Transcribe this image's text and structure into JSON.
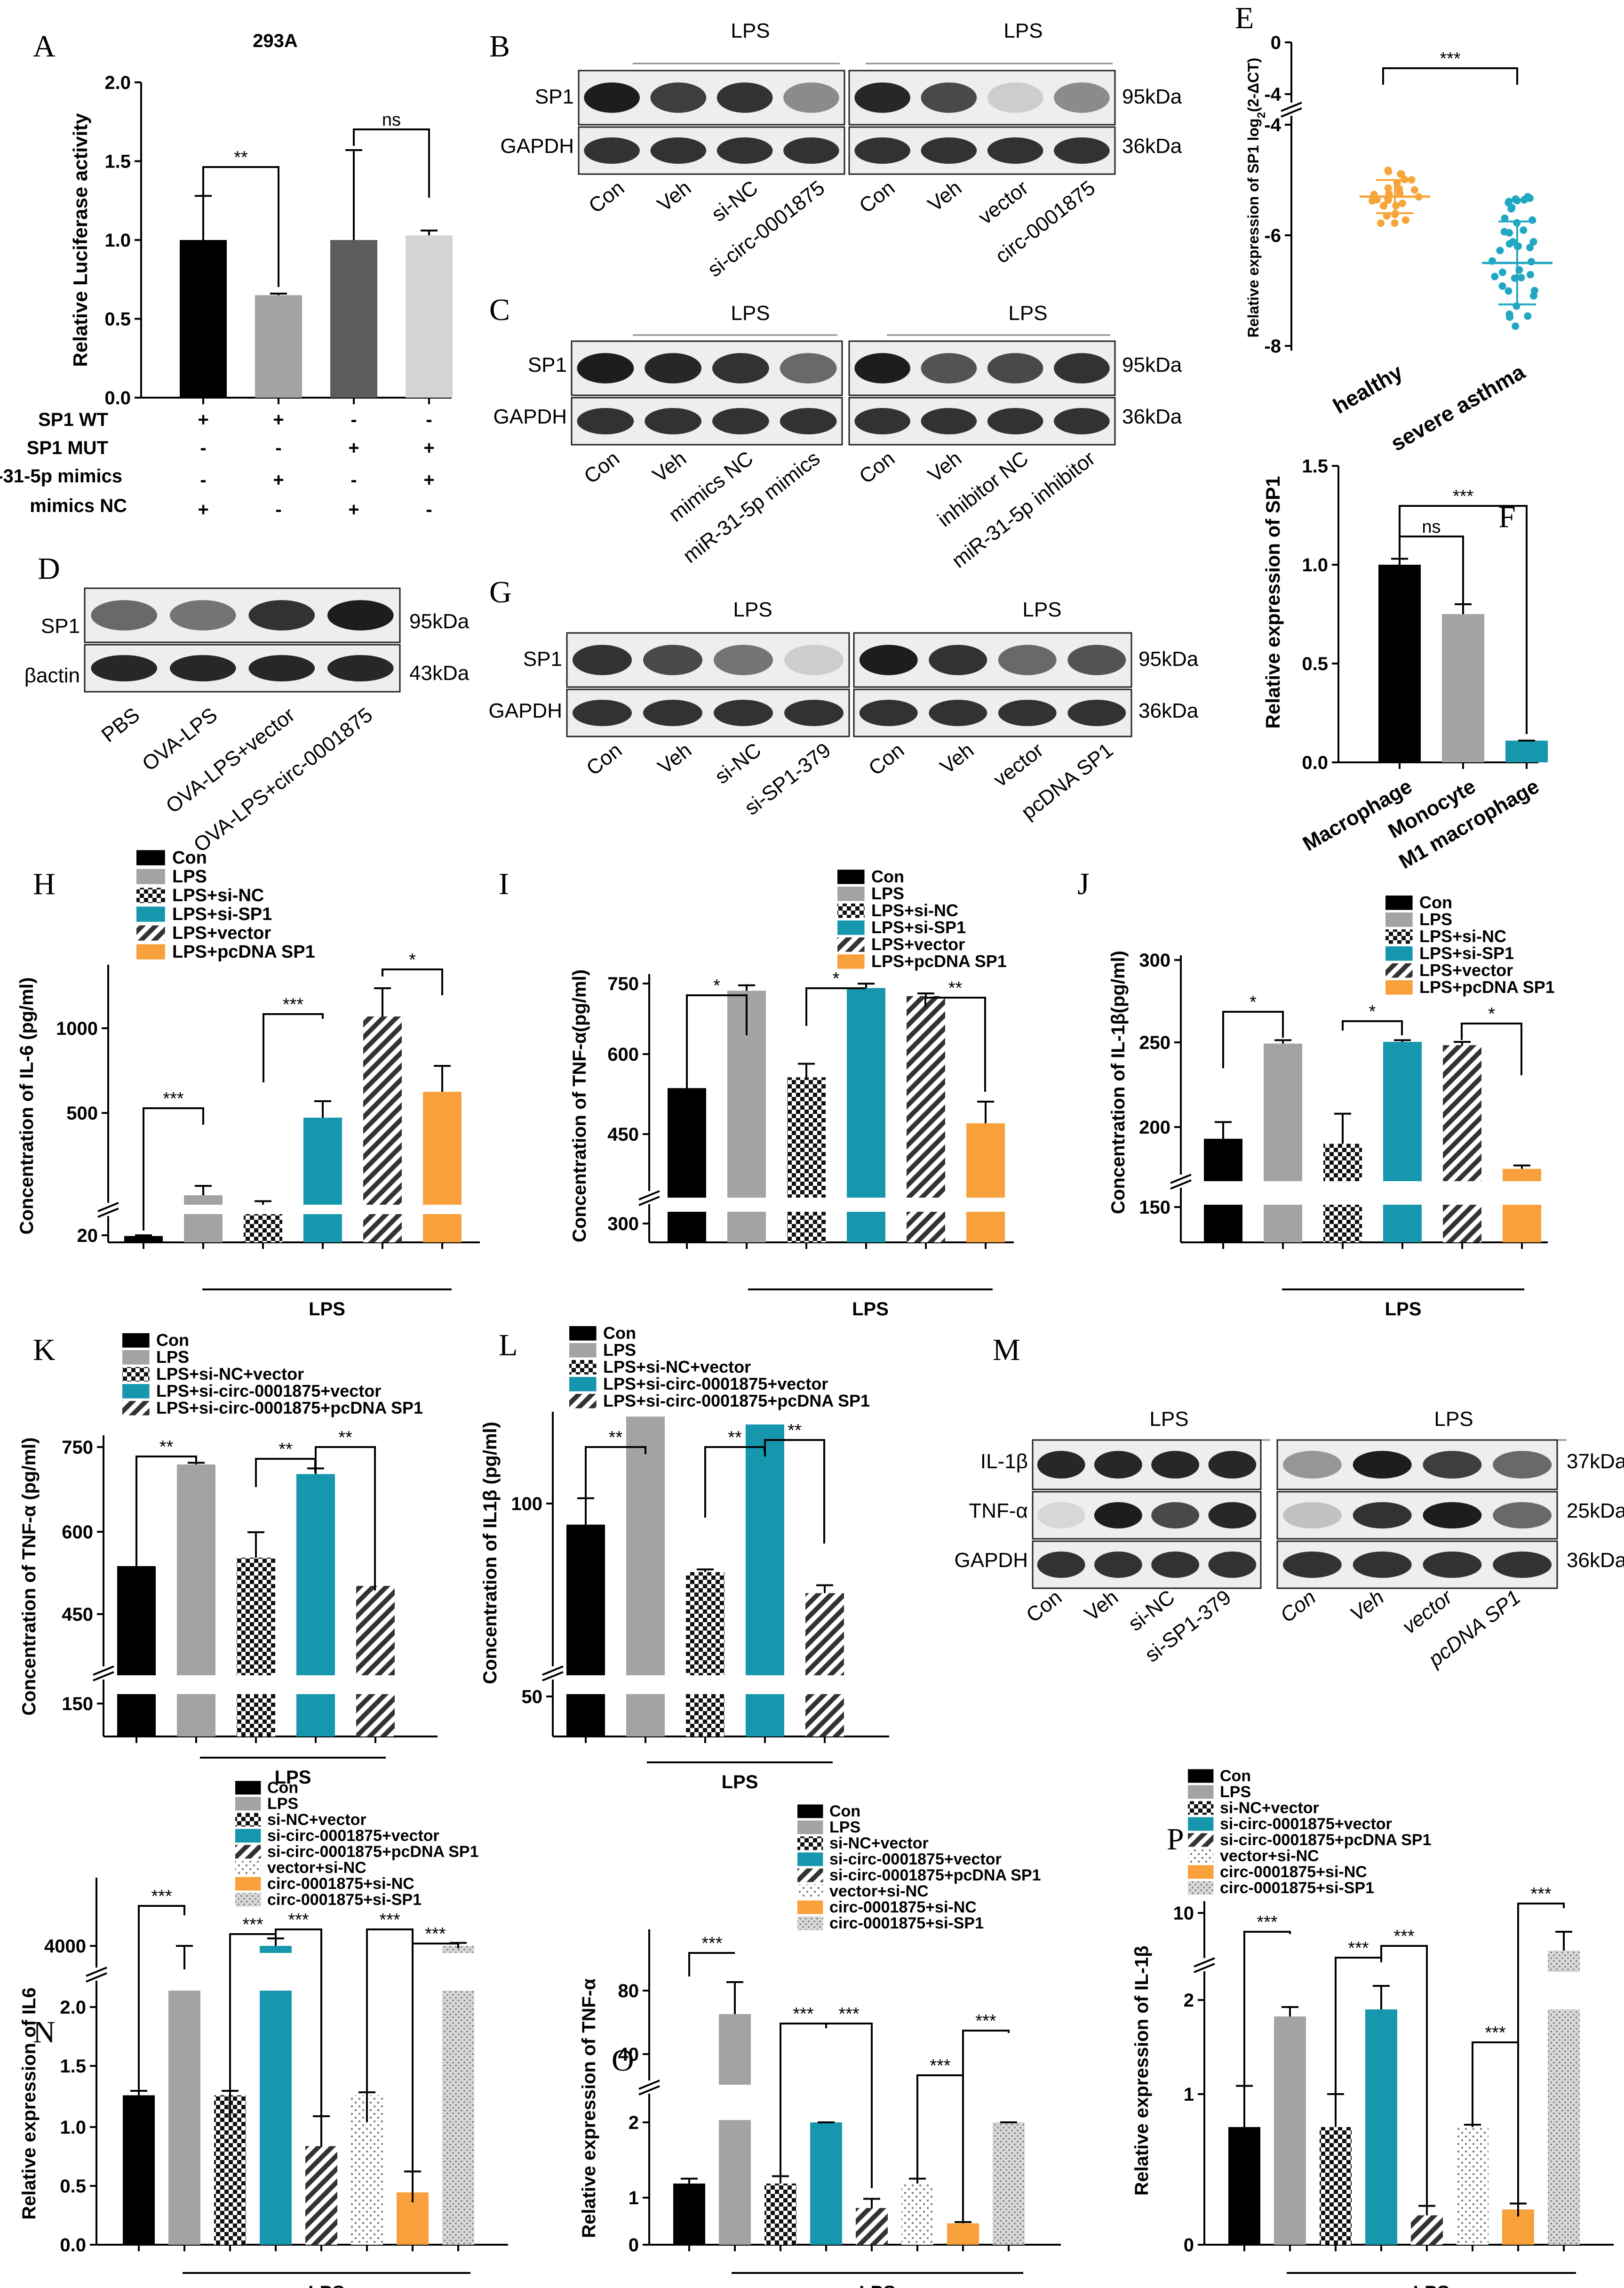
{
  "colors": {
    "black": "#000000",
    "gray": "#a3a3a5",
    "dark": "#5c5c5e",
    "light": "#d4d4d4",
    "teal": "#1797ad",
    "orange": "#f8a13c",
    "healthy": "#f6a53a",
    "asthma": "#21a7c2"
  },
  "panels": {
    "A": {
      "letter": "A",
      "title": "293A",
      "ylabel": "Relative Luciferase activity",
      "rows": [
        "SP1 WT",
        "SP1 MUT",
        "miR-31-5p mimics",
        "mimics NC"
      ],
      "row_values": [
        [
          "+",
          "+",
          "-",
          "-"
        ],
        [
          "-",
          "-",
          "+",
          "+"
        ],
        [
          "-",
          "+",
          "-",
          "+"
        ],
        [
          "+",
          "-",
          "+",
          "-"
        ]
      ],
      "sig": [
        "**",
        "ns"
      ]
    },
    "B": {
      "letter": "B",
      "top_labels": [
        "LPS",
        "LPS"
      ],
      "bands": [
        "SP1",
        "GAPDH"
      ],
      "kda": [
        "95kDa",
        "36kDa"
      ],
      "lanes": [
        "Con",
        "Veh",
        "si-NC",
        "si-circ-0001875",
        "Con",
        "Veh",
        "vector",
        "circ-0001875"
      ]
    },
    "C": {
      "letter": "C",
      "top_labels": [
        "LPS",
        "LPS"
      ],
      "bands": [
        "SP1",
        "GAPDH"
      ],
      "kda": [
        "95kDa",
        "36kDa"
      ],
      "lanes": [
        "Con",
        "Veh",
        "mimics NC",
        "miR-31-5p mimics",
        "Con",
        "Veh",
        "inhibitor NC",
        "miR-31-5p inhibitor"
      ]
    },
    "D": {
      "letter": "D",
      "bands": [
        "SP1",
        "βactin"
      ],
      "kda": [
        "95kDa",
        "43kDa"
      ],
      "lanes": [
        "PBS",
        "OVA-LPS",
        "OVA-LPS+vector",
        "OVA-LPS+circ-0001875"
      ]
    },
    "E": {
      "letter": "E",
      "ylabel_main": "Relative expression of SP1 log",
      "ylabel_sub": "2",
      "ylabel_tail": "(2-ΔCT)",
      "groups": [
        "healthy",
        "severe asthma"
      ],
      "sig": "***"
    },
    "F": {
      "letter": "F",
      "ylabel": "Relative expression of SP1",
      "sig": [
        "ns",
        "***"
      ]
    },
    "G": {
      "letter": "G",
      "top_labels": [
        "LPS",
        "LPS"
      ],
      "bands": [
        "SP1",
        "GAPDH"
      ],
      "kda": [
        "95kDa",
        "36kDa"
      ],
      "lanes": [
        "Con",
        "Veh",
        "si-NC",
        "si-SP1-379",
        "Con",
        "Veh",
        "vector",
        "pcDNA SP1"
      ]
    },
    "H": {
      "letter": "H",
      "ylabel": "Concentration of IL-6 (pg/ml)",
      "group_label": "LPS",
      "legend": [
        "Con",
        "LPS",
        "LPS+si-NC",
        "LPS+si-SP1",
        "LPS+vector",
        "LPS+pcDNA SP1"
      ],
      "sig": [
        "***",
        "***",
        "*"
      ]
    },
    "I": {
      "letter": "I",
      "ylabel": "Concentration of TNF-α(pg/ml)",
      "group_label": "LPS",
      "legend": [
        "Con",
        "LPS",
        "LPS+si-NC",
        "LPS+si-SP1",
        "LPS+vector",
        "LPS+pcDNA SP1"
      ],
      "sig": [
        "*",
        "*",
        "**"
      ]
    },
    "J": {
      "letter": "J",
      "ylabel": "Concentration of IL-1β(pg/ml)",
      "group_label": "LPS",
      "legend": [
        "Con",
        "LPS",
        "LPS+si-NC",
        "LPS+si-SP1",
        "LPS+vector",
        "LPS+pcDNA SP1"
      ],
      "sig": [
        "*",
        "*",
        "*"
      ]
    },
    "K": {
      "letter": "K",
      "ylabel": "Concentration of TNF-α (pg/ml)",
      "group_label": "LPS",
      "legend": [
        "Con",
        "LPS",
        "LPS+si-NC+vector",
        "LPS+si-circ-0001875+vector",
        "LPS+si-circ-0001875+pcDNA SP1"
      ],
      "sig": [
        "**",
        "**",
        "**"
      ]
    },
    "L": {
      "letter": "L",
      "ylabel": "Concentration of IL1β (pg/ml)",
      "group_label": "LPS",
      "legend": [
        "Con",
        "LPS",
        "LPS+si-NC+vector",
        "LPS+si-circ-0001875+vector",
        "LPS+si-circ-0001875+pcDNA SP1"
      ],
      "sig": [
        "**",
        "**",
        "**"
      ]
    },
    "M": {
      "letter": "M",
      "top_labels": [
        "LPS",
        "LPS"
      ],
      "bands": [
        "IL-1β",
        "TNF-α",
        "GAPDH"
      ],
      "kda": [
        "37kDa",
        "25kDa",
        "36kDa"
      ],
      "lanes": [
        "Con",
        "Veh",
        "si-NC",
        "si-SP1-379",
        "Con",
        "Veh",
        "vector",
        "pcDNA SP1"
      ]
    },
    "N": {
      "letter": "N",
      "ylabel": "Relative expression of IL6",
      "group_label": "LPS",
      "legend": [
        "Con",
        "LPS",
        "si-NC+vector",
        "si-circ-0001875+vector",
        "si-circ-0001875+pcDNA SP1",
        "vector+si-NC",
        "circ-0001875+si-NC",
        "circ-0001875+si-SP1"
      ],
      "sig": [
        "***",
        "***",
        "***",
        "***",
        "***"
      ]
    },
    "O": {
      "letter": "O",
      "ylabel": "Relative expression of TNF-α",
      "group_label": "LPS",
      "legend": [
        "Con",
        "LPS",
        "si-NC+vector",
        "si-circ-0001875+vector",
        "si-circ-0001875+pcDNA SP1",
        "vector+si-NC",
        "circ-0001875+si-NC",
        "circ-0001875+si-SP1"
      ],
      "sig": [
        "***",
        "***",
        "***",
        "***",
        "***"
      ]
    },
    "P": {
      "letter": "P",
      "ylabel": "Relative expression of IL-1β",
      "group_label": "LPS",
      "legend": [
        "Con",
        "LPS",
        "si-NC+vector",
        "si-circ-0001875+vector",
        "si-circ-0001875+pcDNA SP1",
        "vector+si-NC",
        "circ-0001875+si-NC",
        "circ-0001875+si-SP1"
      ],
      "sig": [
        "***",
        "***",
        "***",
        "***",
        "***"
      ]
    }
  },
  "chart_data": [
    {
      "panel": "A",
      "type": "bar",
      "categories": [
        "SP1 WT + mimics NC",
        "SP1 WT + miR-31-5p mimics",
        "SP1 MUT + mimics NC",
        "SP1 MUT + miR-31-5p mimics"
      ],
      "values": [
        1.0,
        0.65,
        1.0,
        1.03
      ],
      "errors": [
        0.28,
        0.01,
        0.57,
        0.03
      ],
      "ylim": [
        0,
        2.0
      ],
      "yticks": [
        "0.0",
        "0.5",
        "1.0",
        "1.5",
        "2.0"
      ]
    },
    {
      "panel": "E",
      "type": "scatter",
      "categories": [
        "healthy",
        "severe asthma"
      ],
      "means": [
        -5.3,
        -6.5
      ],
      "sd": [
        0.3,
        0.75
      ],
      "ylim": [
        -8,
        0
      ],
      "yticks": [
        "0",
        "-4",
        "-4",
        "-6",
        "-8"
      ],
      "broken_axis": true
    },
    {
      "panel": "F",
      "type": "bar",
      "categories": [
        "Macrophage",
        "Monocyte",
        "M1 macrophage"
      ],
      "values": [
        1.0,
        0.75,
        0.11
      ],
      "errors": [
        0.03,
        0.05,
        0.0
      ],
      "ylim": [
        0,
        1.5
      ],
      "yticks": [
        "0.0",
        "0.5",
        "1.0",
        "1.5"
      ]
    },
    {
      "panel": "H",
      "type": "bar",
      "categories": [
        "Con",
        "LPS",
        "LPS+si-NC",
        "LPS+si-SP1",
        "LPS+vector",
        "LPS+pcDNA SP1"
      ],
      "values": [
        18,
        360,
        320,
        690,
        1120,
        800
      ],
      "errors": [
        2,
        40,
        15,
        70,
        120,
        110
      ],
      "yticks": [
        "20",
        "500",
        "1000"
      ],
      "broken_axis": true
    },
    {
      "panel": "I",
      "type": "bar",
      "categories": [
        "Con",
        "LPS",
        "LPS+si-NC",
        "LPS+si-SP1",
        "LPS+vector",
        "LPS+pcDNA SP1"
      ],
      "values": [
        535,
        715,
        555,
        720,
        705,
        470
      ],
      "errors": [
        0,
        10,
        25,
        8,
        5,
        40
      ],
      "yticks": [
        "300",
        "450",
        "600",
        "750"
      ],
      "broken_axis": true
    },
    {
      "panel": "J",
      "type": "bar",
      "categories": [
        "Con",
        "LPS",
        "LPS+si-NC",
        "LPS+si-SP1",
        "LPS+vector",
        "LPS+pcDNA SP1"
      ],
      "values": [
        193,
        250,
        190,
        251,
        249,
        175
      ],
      "errors": [
        10,
        2,
        18,
        1,
        2,
        2
      ],
      "yticks": [
        "150",
        "200",
        "250",
        "300"
      ],
      "broken_axis": true
    },
    {
      "panel": "K",
      "type": "bar",
      "categories": [
        "Con",
        "LPS",
        "LPS+si-NC+vector",
        "LPS+si-circ-0001875+vector",
        "LPS+si-circ-0001875+pcDNA SP1"
      ],
      "values": [
        535,
        715,
        550,
        698,
        500
      ],
      "errors": [
        0,
        3,
        45,
        10,
        0
      ],
      "yticks": [
        "150",
        "450",
        "600",
        "750"
      ],
      "broken_axis": true
    },
    {
      "panel": "L",
      "type": "bar",
      "categories": [
        "Con",
        "LPS",
        "LPS+si-NC+vector",
        "LPS+si-circ-0001875+vector",
        "LPS+si-circ-0001875+pcDNA SP1"
      ],
      "values": [
        92,
        133,
        74,
        130,
        66
      ],
      "errors": [
        10,
        0,
        1,
        0,
        3
      ],
      "yticks": [
        "50",
        "100"
      ],
      "broken_axis": true
    },
    {
      "panel": "N",
      "type": "bar",
      "categories": [
        "Con",
        "LPS",
        "si-NC+vector",
        "si-circ-0001875+vector",
        "si-circ-0001875+pcDNA SP1",
        "vector+si-NC",
        "circ-0001875+si-NC",
        "circ-0001875+si-SP1"
      ],
      "values": [
        1.0,
        3800,
        1.0,
        2.0,
        0.66,
        1.0,
        0.35,
        2.0
      ],
      "errors": [
        0.03,
        200,
        0.03,
        0.05,
        0.2,
        0.02,
        0.14,
        0.02
      ],
      "yticks": [
        "0.0",
        "0.5",
        "1.0",
        "1.5",
        "2.0",
        "4000"
      ],
      "broken_axis": true
    },
    {
      "panel": "O",
      "type": "bar",
      "categories": [
        "Con",
        "LPS",
        "si-NC+vector",
        "si-circ-0001875+vector",
        "si-circ-0001875+pcDNA SP1",
        "vector+si-NC",
        "circ-0001875+si-NC",
        "circ-0001875+si-SP1"
      ],
      "values": [
        1.0,
        65,
        1.0,
        2.0,
        0.6,
        1.0,
        0.35,
        2.0
      ],
      "errors": [
        0.08,
        20,
        0.12,
        0.05,
        0.15,
        0.08,
        0.02,
        0.05
      ],
      "yticks": [
        "0",
        "1",
        "2",
        "40",
        "80"
      ],
      "broken_axis": true
    },
    {
      "panel": "P",
      "type": "bar",
      "categories": [
        "Con",
        "LPS",
        "si-NC+vector",
        "si-circ-0001875+vector",
        "si-circ-0001875+pcDNA SP1",
        "vector+si-NC",
        "circ-0001875+si-NC",
        "circ-0001875+si-SP1"
      ],
      "values": [
        1.0,
        4.5,
        1.0,
        2.0,
        0.25,
        1.0,
        0.3,
        8.0
      ],
      "errors": [
        0.35,
        0.5,
        0.28,
        0.2,
        0.08,
        0.02,
        0.05,
        1.0
      ],
      "yticks": [
        "0",
        "1",
        "2",
        "10"
      ],
      "broken_axis": true
    }
  ]
}
